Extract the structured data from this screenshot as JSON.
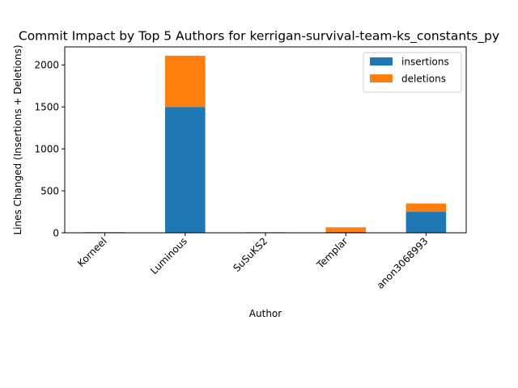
{
  "chart_data": {
    "type": "bar",
    "stacked": true,
    "title": "Commit Impact by Top 5 Authors for kerrigan-survival-team-ks_constants_py",
    "xlabel": "Author",
    "ylabel": "Lines Changed (Insertions + Deletions)",
    "categories": [
      "Korneel",
      "Luminous",
      "SuSuKS2",
      "Templar",
      "anon3068993"
    ],
    "series": [
      {
        "name": "insertions",
        "color": "#1f77b4",
        "values": [
          3,
          1500,
          2,
          10,
          250
        ]
      },
      {
        "name": "deletions",
        "color": "#ff7f0e",
        "values": [
          5,
          610,
          5,
          55,
          100
        ]
      }
    ],
    "yticks": [
      0,
      500,
      1000,
      1500,
      2000
    ],
    "ylim": [
      0,
      2215
    ],
    "grid": false,
    "legend_position": "top-right",
    "xtick_rotation": 45
  }
}
